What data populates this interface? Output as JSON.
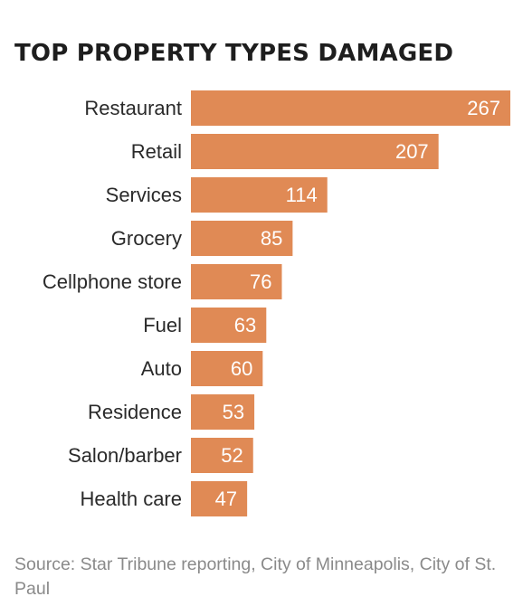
{
  "chart_data": {
    "type": "bar",
    "orientation": "horizontal",
    "title": "TOP PROPERTY TYPES DAMAGED",
    "categories": [
      "Restaurant",
      "Retail",
      "Services",
      "Grocery",
      "Cellphone store",
      "Fuel",
      "Auto",
      "Residence",
      "Salon/barber",
      "Health care"
    ],
    "values": [
      267,
      207,
      114,
      85,
      76,
      63,
      60,
      53,
      52,
      47
    ],
    "xlabel": "",
    "ylabel": "",
    "xlim": [
      0,
      267
    ],
    "grid": false,
    "legend": "none",
    "bar_color": "#e08a55",
    "data_labels": "inside-end"
  },
  "source": "Source: Star Tribune reporting, City of Minneapolis, City of St. Paul"
}
